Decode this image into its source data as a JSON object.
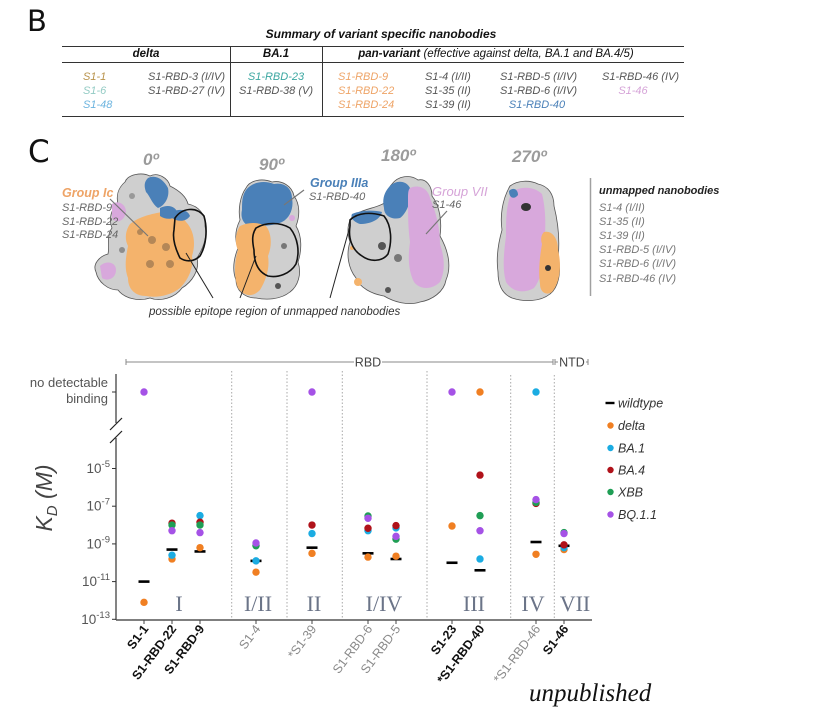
{
  "panel_b": {
    "letter": "B",
    "title": "Summary of variant specific nanobodies",
    "headers": {
      "delta": "delta",
      "ba1": "BA.1",
      "pan": "pan-variant",
      "pan_note": "(effective against delta, BA.1 and BA.4/5)"
    },
    "delta": [
      [
        {
          "text": "S1-1",
          "color": "#b8924a"
        },
        {
          "text": "S1-6",
          "color": "#93cbc4"
        },
        {
          "text": "S1-48",
          "color": "#6cb4df"
        }
      ],
      [
        {
          "text": "S1-RBD-3 (I/IV)",
          "color": "#555555"
        },
        {
          "text": "S1-RBD-27 (IV)",
          "color": "#555555"
        }
      ]
    ],
    "ba1": [
      [
        {
          "text": "S1-RBD-23",
          "color": "#3aa6a0"
        },
        {
          "text": "S1-RBD-38 (V)",
          "color": "#555555"
        }
      ]
    ],
    "pan": [
      [
        {
          "text": "S1-RBD-9",
          "color": "#eea467"
        },
        {
          "text": "S1-RBD-22",
          "color": "#eea467"
        },
        {
          "text": "S1-RBD-24",
          "color": "#eea467"
        }
      ],
      [
        {
          "text": "S1-4 (I/II)",
          "color": "#555555"
        },
        {
          "text": "S1-35 (II)",
          "color": "#555555"
        },
        {
          "text": "S1-39 (II)",
          "color": "#555555"
        }
      ],
      [
        {
          "text": "S1-RBD-5 (I/IV)",
          "color": "#555555"
        },
        {
          "text": "S1-RBD-6 (I/IV)",
          "color": "#555555"
        },
        {
          "text": "S1-RBD-40",
          "color": "#4a80b8"
        }
      ],
      [
        {
          "text": "S1-RBD-46 (IV)",
          "color": "#555555"
        },
        {
          "text": "S1-46",
          "color": "#d6a4d8"
        }
      ]
    ]
  },
  "panel_c": {
    "letter": "C",
    "angles": [
      "0º",
      "90º",
      "180º",
      "270º"
    ],
    "colors": {
      "surface": "#cfcfcf",
      "group_ic": "#f4b36c",
      "group_iiia": "#4a80b8",
      "group_vii": "#d8a8dc"
    },
    "groups": [
      {
        "name": "Group Ic",
        "color": "#eea467",
        "members": [
          "S1-RBD-9",
          "S1-RBD-22",
          "S1-RBD-24"
        ]
      },
      {
        "name": "Group IIIa",
        "color": "#4a80b8",
        "members": [
          "S1-RBD-40"
        ]
      },
      {
        "name": "Group VII",
        "color": "#d6a4d8",
        "members": [
          "S1-46"
        ]
      }
    ],
    "epitope_caption": "possible epitope region of unmapped nanobodies",
    "unmapped": {
      "title": "unmapped nanobodies",
      "items": [
        "S1-4 (I/II)",
        "S1-35 (II)",
        "S1-39 (II)",
        "S1-RBD-5 (I/IV)",
        "S1-RBD-6 (I/IV)",
        "S1-RBD-46 (IV)"
      ]
    }
  },
  "chart_data": {
    "type": "scatter",
    "title": "",
    "ylabel": {
      "main": "K",
      "sub": "D",
      "unit": " (M)"
    },
    "yscale": "log10",
    "value_units": "log10(KD / M)",
    "ylim": [
      -13,
      -5
    ],
    "yticks": [
      -5,
      -7,
      -9,
      -11,
      -13
    ],
    "ytick_base": "10",
    "ndb_code": "NDB",
    "ndb_label": [
      "no detectable",
      "binding"
    ],
    "grid": false,
    "legend_position": "right",
    "domains": [
      {
        "label": "RBD"
      },
      {
        "label": "NTD"
      }
    ],
    "categories": [
      {
        "name": "S1-1",
        "emphasis": "bold"
      },
      {
        "name": "S1-RBD-22",
        "emphasis": "bold"
      },
      {
        "name": "S1-RBD-9",
        "emphasis": "bold"
      },
      {
        "name": "S1-4",
        "emphasis": "gray"
      },
      {
        "name": "*S1-39",
        "emphasis": "gray"
      },
      {
        "name": "S1-RBD-6",
        "emphasis": "gray"
      },
      {
        "name": "S1-RBD-5",
        "emphasis": "gray"
      },
      {
        "name": "S1-23",
        "emphasis": "bold"
      },
      {
        "name": "*S1-RBD-40",
        "emphasis": "bold"
      },
      {
        "name": "*S1-RBD-46",
        "emphasis": "gray"
      },
      {
        "name": "S1-46",
        "emphasis": "bold"
      }
    ],
    "groups": [
      {
        "label": "I",
        "members": [
          0,
          1,
          2
        ]
      },
      {
        "label": "I/II",
        "members": [
          3
        ]
      },
      {
        "label": "II",
        "members": [
          4
        ]
      },
      {
        "label": "I/IV",
        "members": [
          5,
          6
        ]
      },
      {
        "label": "III",
        "members": [
          7,
          8
        ]
      },
      {
        "label": "IV",
        "members": [
          9
        ]
      },
      {
        "label": "VII",
        "members": [
          10
        ]
      }
    ],
    "series": [
      {
        "name": "wildtype",
        "marker": "dash",
        "color": "#000000",
        "values": [
          -11.0,
          -9.3,
          -9.4,
          -9.9,
          -9.2,
          -9.5,
          -9.8,
          -10.0,
          -10.4,
          -8.9,
          -9.1
        ]
      },
      {
        "name": "delta",
        "marker": "dot",
        "color": "#f07f22",
        "values": [
          -12.1,
          -9.8,
          -9.2,
          -10.5,
          -9.5,
          -9.7,
          -9.65,
          -8.05,
          "NDB",
          -9.55,
          -9.3
        ]
      },
      {
        "name": "BA.1",
        "marker": "dot",
        "color": "#1bace2",
        "values": [
          null,
          -9.6,
          -7.5,
          -9.9,
          -8.45,
          -8.3,
          -8.15,
          null,
          -9.8,
          "NDB",
          -9.2
        ]
      },
      {
        "name": "BA.4",
        "marker": "dot",
        "color": "#b0121a",
        "values": [
          null,
          -7.9,
          -7.85,
          null,
          -8.0,
          -8.17,
          -8.03,
          null,
          -5.35,
          -6.85,
          -9.05
        ]
      },
      {
        "name": "XBB",
        "marker": "dot",
        "color": "#1f9e55",
        "values": [
          null,
          -8.0,
          -8.0,
          -9.1,
          null,
          -7.52,
          -8.75,
          null,
          -7.5,
          -6.8,
          -8.4
        ]
      },
      {
        "name": "BQ.1.1",
        "marker": "dot",
        "color": "#a552e6",
        "values": [
          "NDB",
          -8.3,
          -8.4,
          -8.95,
          "NDB",
          -7.64,
          -8.6,
          "NDB",
          -8.3,
          -6.65,
          -8.45
        ]
      }
    ],
    "note": "unpublished"
  }
}
